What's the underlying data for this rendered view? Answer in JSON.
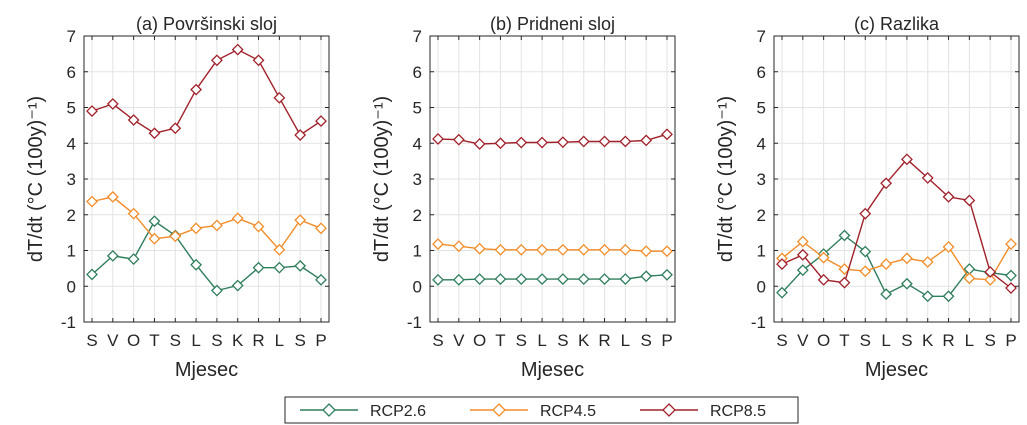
{
  "colors": {
    "RCP2.6": "#2e7d5b",
    "RCP4.5": "#f28c28",
    "RCP8.5": "#a1202a",
    "grid": "#e3e3e3",
    "axis": "#262626"
  },
  "legend": {
    "placement": "bottom-center",
    "items": [
      "RCP2.6",
      "RCP4.5",
      "RCP8.5"
    ]
  },
  "chart_data": [
    {
      "type": "line",
      "title": "(a) Površinski sloj",
      "xlabel": "Mjesec",
      "ylabel": "dT/dt (°C (100y)⁻¹)",
      "ylim": [
        -1,
        7
      ],
      "yticks": [
        "-1",
        "0",
        "1",
        "2",
        "3",
        "4",
        "5",
        "6",
        "7"
      ],
      "grid": true,
      "categories": [
        "S",
        "V",
        "O",
        "T",
        "S",
        "L",
        "S",
        "K",
        "R",
        "L",
        "S",
        "P"
      ],
      "series": [
        {
          "name": "RCP2.6",
          "values": [
            0.33,
            0.85,
            0.76,
            1.82,
            1.42,
            0.6,
            -0.12,
            0.02,
            0.52,
            0.52,
            0.57,
            0.18
          ]
        },
        {
          "name": "RCP4.5",
          "values": [
            2.37,
            2.5,
            2.03,
            1.33,
            1.4,
            1.62,
            1.7,
            1.9,
            1.67,
            1.02,
            1.85,
            1.62
          ]
        },
        {
          "name": "RCP8.5",
          "values": [
            4.9,
            5.1,
            4.65,
            4.28,
            4.42,
            5.5,
            6.32,
            6.62,
            6.32,
            5.27,
            4.23,
            4.62
          ]
        }
      ]
    },
    {
      "type": "line",
      "title": "(b) Pridneni sloj",
      "xlabel": "Mjesec",
      "ylabel": "dT/dt (°C (100y)⁻¹)",
      "ylim": [
        -1,
        7
      ],
      "yticks": [
        "-1",
        "0",
        "1",
        "2",
        "3",
        "4",
        "5",
        "6",
        "7"
      ],
      "grid": true,
      "categories": [
        "S",
        "V",
        "O",
        "T",
        "S",
        "L",
        "S",
        "K",
        "R",
        "L",
        "S",
        "P"
      ],
      "series": [
        {
          "name": "RCP2.6",
          "values": [
            0.18,
            0.18,
            0.2,
            0.2,
            0.2,
            0.2,
            0.2,
            0.2,
            0.2,
            0.2,
            0.28,
            0.32
          ]
        },
        {
          "name": "RCP4.5",
          "values": [
            1.18,
            1.12,
            1.05,
            1.02,
            1.02,
            1.02,
            1.02,
            1.02,
            1.02,
            1.02,
            0.98,
            0.98
          ]
        },
        {
          "name": "RCP8.5",
          "values": [
            4.12,
            4.1,
            3.98,
            4.0,
            4.02,
            4.02,
            4.03,
            4.05,
            4.05,
            4.05,
            4.08,
            4.25
          ]
        }
      ]
    },
    {
      "type": "line",
      "title": "(c) Razlika",
      "xlabel": "Mjesec",
      "ylabel": "dT/dt (°C (100y)⁻¹)",
      "ylim": [
        -1,
        7
      ],
      "yticks": [
        "-1",
        "0",
        "1",
        "2",
        "3",
        "4",
        "5",
        "6",
        "7"
      ],
      "grid": true,
      "categories": [
        "S",
        "V",
        "O",
        "T",
        "S",
        "L",
        "S",
        "K",
        "R",
        "L",
        "S",
        "P"
      ],
      "series": [
        {
          "name": "RCP2.6",
          "values": [
            -0.18,
            0.45,
            0.9,
            1.42,
            0.97,
            -0.22,
            0.07,
            -0.28,
            -0.28,
            0.48,
            0.38,
            0.3
          ]
        },
        {
          "name": "RCP4.5",
          "values": [
            0.78,
            1.25,
            0.8,
            0.48,
            0.42,
            0.62,
            0.78,
            0.68,
            1.1,
            0.22,
            0.18,
            1.18
          ]
        },
        {
          "name": "RCP8.5",
          "values": [
            0.62,
            0.88,
            0.18,
            0.1,
            2.03,
            2.88,
            3.55,
            3.03,
            2.5,
            2.4,
            0.4,
            -0.05
          ]
        }
      ]
    }
  ]
}
